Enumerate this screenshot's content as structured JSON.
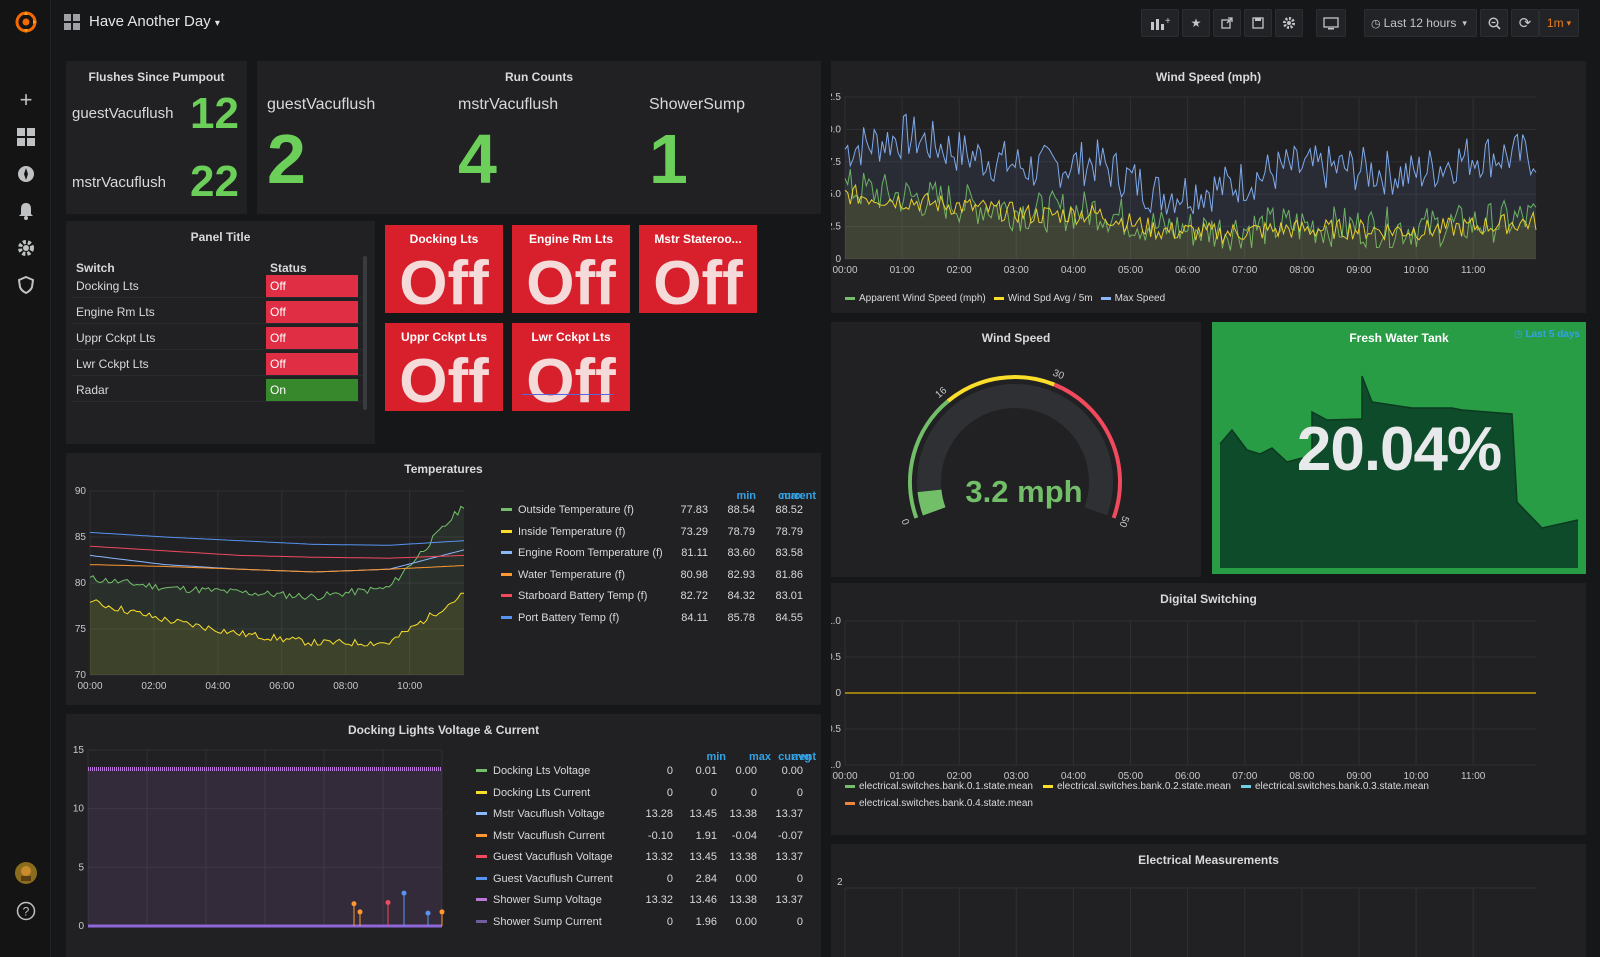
{
  "header": {
    "title": "Have Another Day",
    "time_range": "Last 12 hours",
    "refresh": "1m"
  },
  "colors": {
    "green": "#73bf69",
    "yellow": "#fade2a",
    "blue": "#5794f2",
    "cyan": "#8ab8ff",
    "red": "#f2495c",
    "orange": "#ff9830",
    "purple": "#b877d9",
    "off_red": "#d8202c",
    "grafana_orange": "#f46800"
  },
  "flushes": {
    "title": "Flushes Since Pumpout",
    "items": [
      {
        "label": "guestVacuflush",
        "value": "12"
      },
      {
        "label": "mstrVacuflush",
        "value": "22"
      }
    ]
  },
  "run_counts": {
    "title": "Run Counts",
    "items": [
      {
        "label": "guestVacuflush",
        "value": "2"
      },
      {
        "label": "mstrVacuflush",
        "value": "4"
      },
      {
        "label": "ShowerSump",
        "value": "1"
      }
    ]
  },
  "switch_table": {
    "title": "Panel Title",
    "col_switch": "Switch",
    "col_status": "Status",
    "rows": [
      {
        "name": "Docking Lts",
        "status": "Off"
      },
      {
        "name": "Engine Rm Lts",
        "status": "Off"
      },
      {
        "name": "Uppr Cckpt Lts",
        "status": "Off"
      },
      {
        "name": "Lwr Cckpt Lts",
        "status": "Off"
      },
      {
        "name": "Radar",
        "status": "On"
      }
    ]
  },
  "tiles": [
    {
      "title": "Docking Lts",
      "value": "Off"
    },
    {
      "title": "Engine Rm Lts",
      "value": "Off"
    },
    {
      "title": "Mstr Stateroo...",
      "value": "Off"
    },
    {
      "title": "Uppr Cckpt Lts",
      "value": "Off"
    },
    {
      "title": "Lwr Cckpt Lts",
      "value": "Off"
    }
  ],
  "temperatures": {
    "title": "Temperatures",
    "headers": [
      "min",
      "max",
      "current"
    ],
    "rows": [
      {
        "name": "Outside Temperature (f)",
        "color": "#73bf69",
        "min": "77.83",
        "max": "88.54",
        "current": "88.52"
      },
      {
        "name": "Inside Temperature (f)",
        "color": "#fade2a",
        "min": "73.29",
        "max": "78.79",
        "current": "78.79"
      },
      {
        "name": "Engine Room Temperature (f)",
        "color": "#8ab8ff",
        "min": "81.11",
        "max": "83.60",
        "current": "83.58"
      },
      {
        "name": "Water Temperature (f)",
        "color": "#ff9830",
        "min": "80.98",
        "max": "82.93",
        "current": "81.86"
      },
      {
        "name": "Starboard Battery Temp (f)",
        "color": "#f2495c",
        "min": "82.72",
        "max": "84.32",
        "current": "83.01"
      },
      {
        "name": "Port Battery Temp (f)",
        "color": "#5794f2",
        "min": "84.11",
        "max": "85.78",
        "current": "84.55"
      }
    ]
  },
  "docking_lights": {
    "title": "Docking Lights Voltage & Current",
    "headers": [
      "min",
      "max",
      "avg",
      "current"
    ],
    "rows": [
      {
        "name": "Docking Lts Voltage",
        "color": "#73bf69",
        "min": "0",
        "max": "0.01",
        "avg": "0.00",
        "current": "0.00"
      },
      {
        "name": "Docking Lts Current",
        "color": "#fade2a",
        "min": "0",
        "max": "0",
        "avg": "0",
        "current": "0"
      },
      {
        "name": "Mstr Vacuflush Voltage",
        "color": "#8ab8ff",
        "min": "13.28",
        "max": "13.45",
        "avg": "13.38",
        "current": "13.37"
      },
      {
        "name": "Mstr Vacuflush Current",
        "color": "#ff9830",
        "min": "-0.10",
        "max": "1.91",
        "avg": "-0.04",
        "current": "-0.07"
      },
      {
        "name": "Guest Vacuflush Voltage",
        "color": "#f2495c",
        "min": "13.32",
        "max": "13.45",
        "avg": "13.38",
        "current": "13.37"
      },
      {
        "name": "Guest Vacuflush Current",
        "color": "#5794f2",
        "min": "0",
        "max": "2.84",
        "avg": "0.00",
        "current": "0"
      },
      {
        "name": "Shower Sump Voltage",
        "color": "#b877d9",
        "min": "13.32",
        "max": "13.46",
        "avg": "13.38",
        "current": "13.37"
      },
      {
        "name": "Shower Sump Current",
        "color": "#705da0",
        "min": "0",
        "max": "1.96",
        "avg": "0.00",
        "current": "0"
      }
    ]
  },
  "wind_speed_gauge": {
    "title": "Wind Speed",
    "value_text": "3.2 mph",
    "value": 3.2,
    "min": 0,
    "max": 50,
    "thresholds": [
      16,
      30
    ],
    "tick_labels": [
      "0",
      "16",
      "30",
      "50"
    ]
  },
  "fresh_water": {
    "title": "Fresh Water Tank",
    "time_override": "Last 5 days",
    "value_text": "20.04%",
    "value": 20.04
  },
  "digital_switching": {
    "title": "Digital Switching",
    "legend": [
      {
        "name": "electrical.switches.bank.0.1.state.mean",
        "color": "#73bf69"
      },
      {
        "name": "electrical.switches.bank.0.2.state.mean",
        "color": "#fade2a"
      },
      {
        "name": "electrical.switches.bank.0.3.state.mean",
        "color": "#6ed0e0"
      },
      {
        "name": "electrical.switches.bank.0.4.state.mean",
        "color": "#ef843c"
      }
    ]
  },
  "electrical": {
    "title": "Electrical Measurements",
    "y_top_label": "2"
  },
  "chart_data": [
    {
      "type": "line",
      "title": "Wind Speed (mph)",
      "x": [
        "00:00",
        "01:00",
        "02:00",
        "03:00",
        "04:00",
        "05:00",
        "06:00",
        "07:00",
        "08:00",
        "09:00",
        "10:00",
        "11:00"
      ],
      "yticks": [
        "0",
        "2.5",
        "5.0",
        "7.5",
        "10.0",
        "12.5"
      ],
      "ylim": [
        0,
        12.5
      ],
      "series": [
        {
          "name": "Apparent Wind Speed (mph)",
          "color": "#73bf69",
          "values": [
            5.5,
            4.8,
            4.2,
            3.6,
            3.8,
            2.4,
            2.2,
            2.6,
            2.5,
            2.4,
            2.7,
            3.2
          ]
        },
        {
          "name": "Wind Spd Avg / 5m",
          "color": "#fade2a",
          "values": [
            5.0,
            4.5,
            4.0,
            3.4,
            3.5,
            2.2,
            2.0,
            2.3,
            2.3,
            2.2,
            2.5,
            2.9
          ]
        },
        {
          "name": "Max Speed",
          "color": "#8ab8ff",
          "values": [
            8.5,
            9.5,
            8.0,
            7.0,
            7.5,
            5.0,
            5.5,
            7.0,
            7.0,
            6.5,
            8.0,
            8.0
          ]
        }
      ]
    },
    {
      "type": "line",
      "title": "Temperatures",
      "x": [
        "00:00",
        "02:00",
        "04:00",
        "06:00",
        "08:00",
        "10:00"
      ],
      "yticks": [
        "70",
        "75",
        "80",
        "85",
        "90"
      ],
      "ylim": [
        70,
        90
      ],
      "series": [
        {
          "name": "Outside Temperature (f)",
          "values": [
            80.5,
            79.5,
            79.0,
            78.5,
            79.5,
            88.5
          ]
        },
        {
          "name": "Inside Temperature (f)",
          "values": [
            78.0,
            76.0,
            74.5,
            73.5,
            73.5,
            78.8
          ]
        },
        {
          "name": "Engine Room Temperature (f)",
          "values": [
            83.0,
            82.0,
            81.5,
            81.2,
            81.5,
            83.6
          ]
        },
        {
          "name": "Water Temperature (f)",
          "values": [
            82.0,
            81.8,
            81.5,
            81.2,
            81.5,
            81.9
          ]
        },
        {
          "name": "Starboard Battery Temp (f)",
          "values": [
            84.0,
            83.5,
            83.0,
            82.8,
            82.7,
            83.0
          ]
        },
        {
          "name": "Port Battery Temp (f)",
          "values": [
            85.5,
            85.0,
            84.6,
            84.2,
            84.1,
            84.6
          ]
        }
      ]
    },
    {
      "type": "line",
      "title": "Docking Lights Voltage & Current",
      "yticks": [
        "0",
        "5",
        "10",
        "15"
      ],
      "ylim": [
        0,
        15
      ],
      "series": [
        {
          "name": "Shower Sump Voltage",
          "values": [
            13.38,
            13.38,
            13.38,
            13.38
          ]
        },
        {
          "name": "Docking Lts Voltage",
          "values": [
            0,
            0,
            0,
            0
          ]
        }
      ]
    },
    {
      "type": "line",
      "title": "Digital Switching",
      "x": [
        "00:00",
        "01:00",
        "02:00",
        "03:00",
        "04:00",
        "05:00",
        "06:00",
        "07:00",
        "08:00",
        "09:00",
        "10:00",
        "11:00"
      ],
      "yticks": [
        "-1.0",
        "-0.5",
        "0",
        "0.5",
        "1.0"
      ],
      "ylim": [
        -1,
        1
      ],
      "series": [
        {
          "name": "electrical.switches.bank.0.2.state.mean",
          "values": [
            0,
            0,
            0,
            0,
            0,
            0,
            0,
            0,
            0,
            0,
            0,
            0
          ]
        }
      ]
    }
  ]
}
